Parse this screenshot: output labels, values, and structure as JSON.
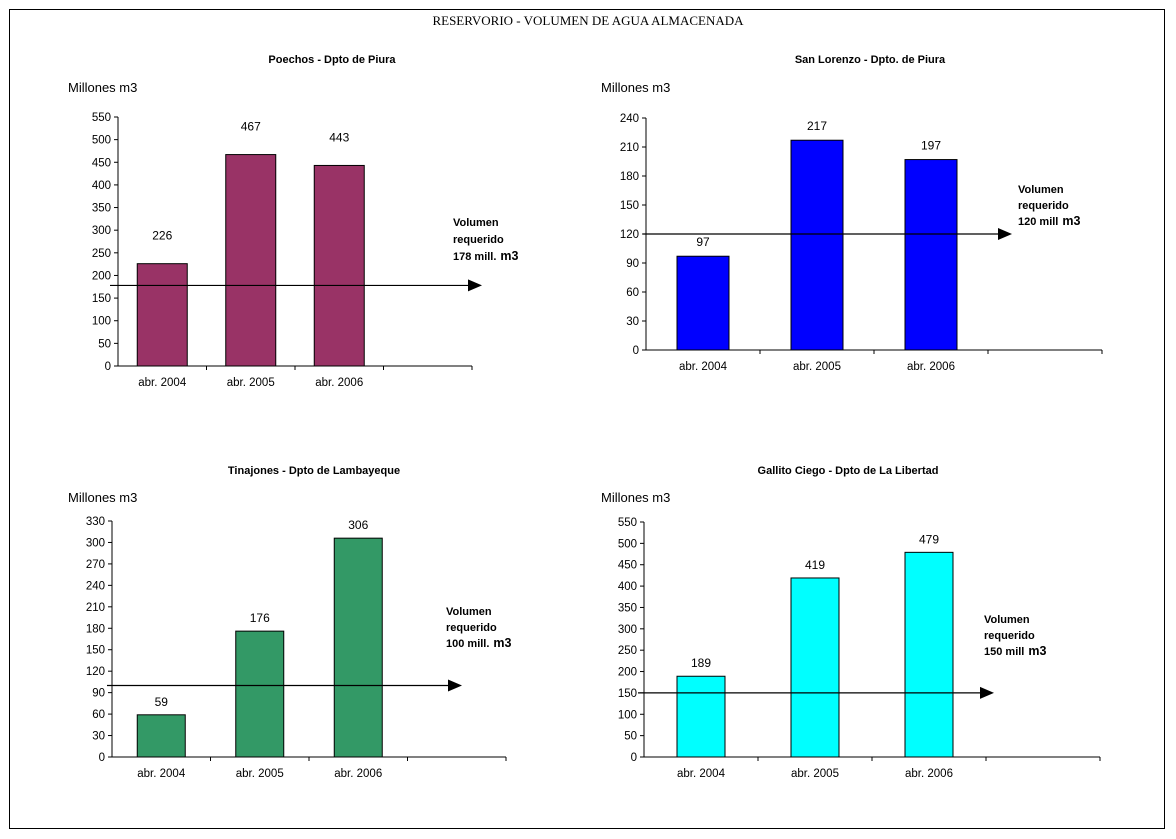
{
  "page_title": "RESERVORIO - VOLUMEN DE AGUA ALMACENADA",
  "chart_data": [
    {
      "type": "bar",
      "title": "Poechos - Dpto de Piura",
      "ylabel": "Millones m3",
      "categories": [
        "abr. 2004",
        "abr. 2005",
        "abr. 2006"
      ],
      "values": [
        226,
        467,
        443
      ],
      "ylim": [
        0,
        550
      ],
      "yticks": [
        0,
        50,
        100,
        150,
        200,
        250,
        300,
        350,
        400,
        450,
        500,
        550
      ],
      "bar_color": "#993366",
      "reference_value": 178,
      "annotation": [
        "Volumen",
        "requerido",
        "178 mill.",
        "m3"
      ]
    },
    {
      "type": "bar",
      "title": "San Lorenzo - Dpto. de Piura",
      "ylabel": "Millones m3",
      "categories": [
        "abr. 2004",
        "abr. 2005",
        "abr. 2006"
      ],
      "values": [
        97,
        217,
        197
      ],
      "ylim": [
        0,
        240
      ],
      "yticks": [
        0,
        30,
        60,
        90,
        120,
        150,
        180,
        210,
        240
      ],
      "bar_color": "#0000ff",
      "reference_value": 120,
      "annotation": [
        "Volumen",
        "requerido",
        "120 mill",
        "m3"
      ]
    },
    {
      "type": "bar",
      "title": "Tinajones - Dpto de Lambayeque",
      "ylabel": "Millones m3",
      "categories": [
        "abr. 2004",
        "abr. 2005",
        "abr. 2006"
      ],
      "values": [
        59,
        176,
        306
      ],
      "ylim": [
        0,
        330
      ],
      "yticks": [
        0,
        30,
        60,
        90,
        120,
        150,
        180,
        210,
        240,
        270,
        300,
        330
      ],
      "bar_color": "#339966",
      "reference_value": 100,
      "annotation": [
        "Volumen",
        "requerido",
        "100 mill.",
        "m3"
      ]
    },
    {
      "type": "bar",
      "title": "Gallito Ciego - Dpto de La Libertad",
      "ylabel": "Millones m3",
      "categories": [
        "abr. 2004",
        "abr. 2005",
        "abr. 2006"
      ],
      "values": [
        189,
        419,
        479
      ],
      "ylim": [
        0,
        550
      ],
      "yticks": [
        0,
        50,
        100,
        150,
        200,
        250,
        300,
        350,
        400,
        450,
        500,
        550
      ],
      "bar_color": "#00ffff",
      "reference_value": 150,
      "annotation": [
        "Volumen",
        "requerido",
        "150 mill",
        "m3"
      ]
    }
  ]
}
